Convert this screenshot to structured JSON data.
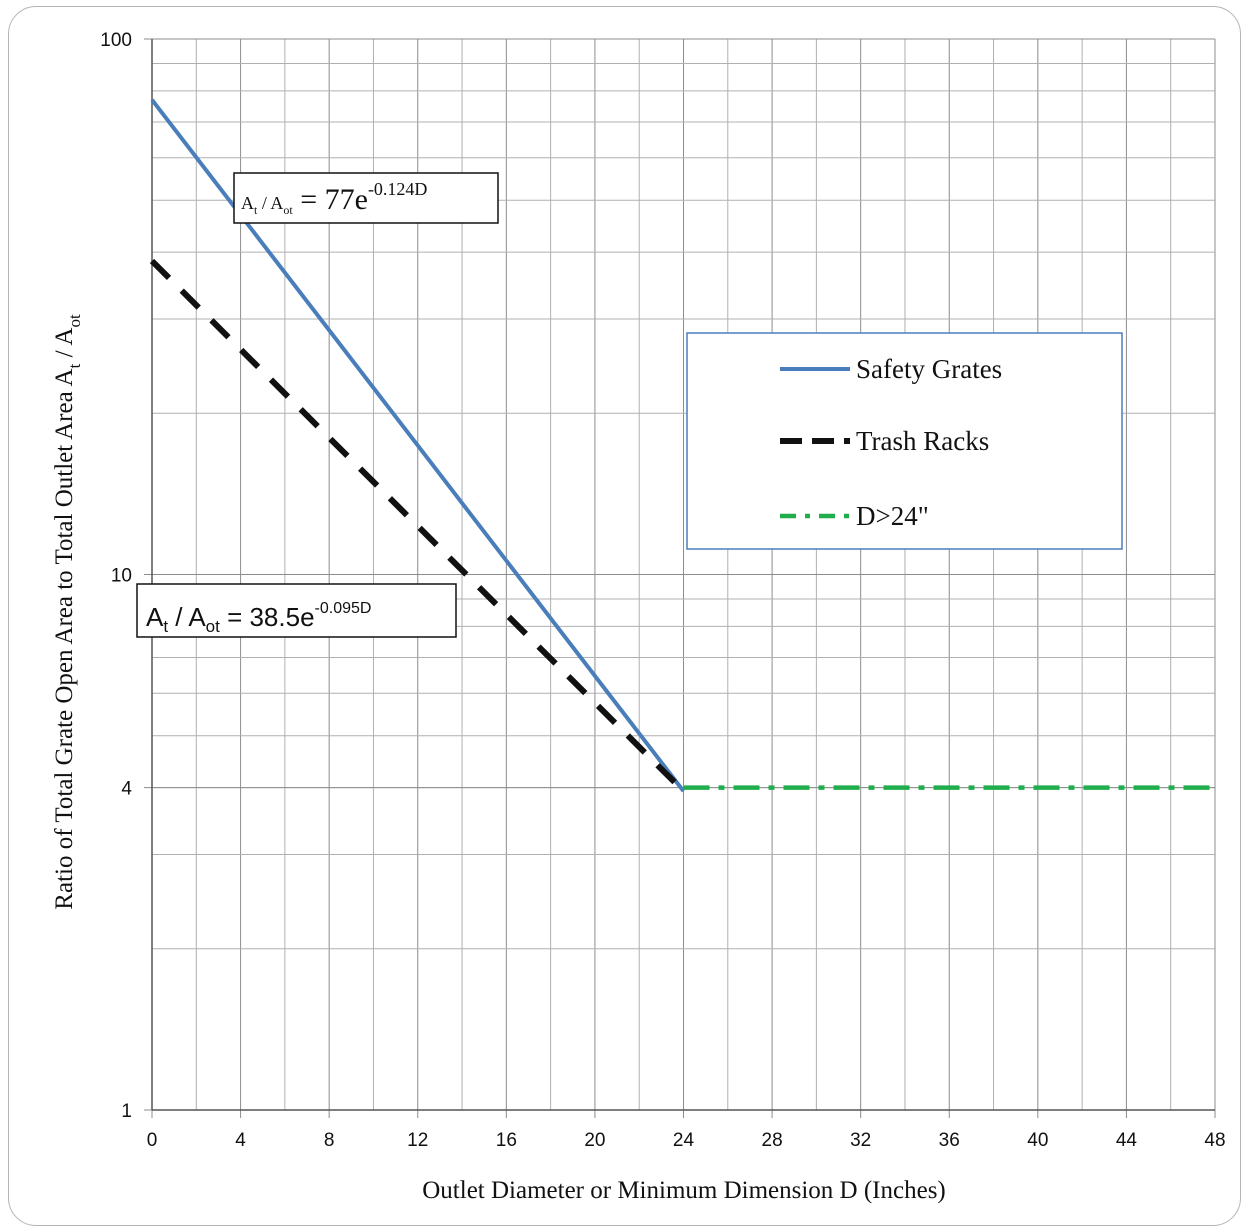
{
  "chart_data": {
    "type": "line",
    "xlabel": "Outlet Diameter or Minimum Dimension D (Inches)",
    "ylabel_main": "Ratio of Total Grate Open Area to Total Outlet Area A",
    "ylabel_sub1": "t",
    "ylabel_mid": " / A",
    "ylabel_sub2": "ot",
    "xlim": [
      0,
      48
    ],
    "ylim": [
      1,
      100
    ],
    "yscale": "log",
    "grid": true,
    "xticks": [
      "0",
      "4",
      "8",
      "12",
      "16",
      "20",
      "24",
      "28",
      "32",
      "36",
      "40",
      "44",
      "48"
    ],
    "xtick_values": [
      0,
      4,
      8,
      12,
      16,
      20,
      24,
      28,
      32,
      36,
      40,
      44,
      48
    ],
    "yticks": [
      "1",
      "4",
      "10",
      "100"
    ],
    "ytick_values": [
      1,
      4,
      10,
      100
    ],
    "legend_position": "right-center",
    "series": [
      {
        "name": "Safety Grates",
        "color": "#4a7ebb",
        "style": "solid",
        "x": [
          0,
          24
        ],
        "y": [
          77,
          3.94
        ]
      },
      {
        "name": "Trash Racks",
        "color": "#111111",
        "style": "dashed",
        "x": [
          0,
          24
        ],
        "y": [
          38.5,
          3.94
        ]
      },
      {
        "name": "D>24\"",
        "color": "#1fae4b",
        "style": "dashdot",
        "x": [
          24,
          48
        ],
        "y": [
          4,
          4
        ]
      }
    ],
    "annotations": [
      {
        "id": "safety",
        "base": "A",
        "sub1": "t",
        "mid": " / A",
        "sub2": "ot",
        "eq": " = 77e",
        "exp": "-0.124D"
      },
      {
        "id": "trash",
        "base": "A",
        "sub1": "t",
        "mid": " / A",
        "sub2": "ot",
        "eq": " = 38.5e",
        "exp": "-0.095D"
      }
    ]
  }
}
